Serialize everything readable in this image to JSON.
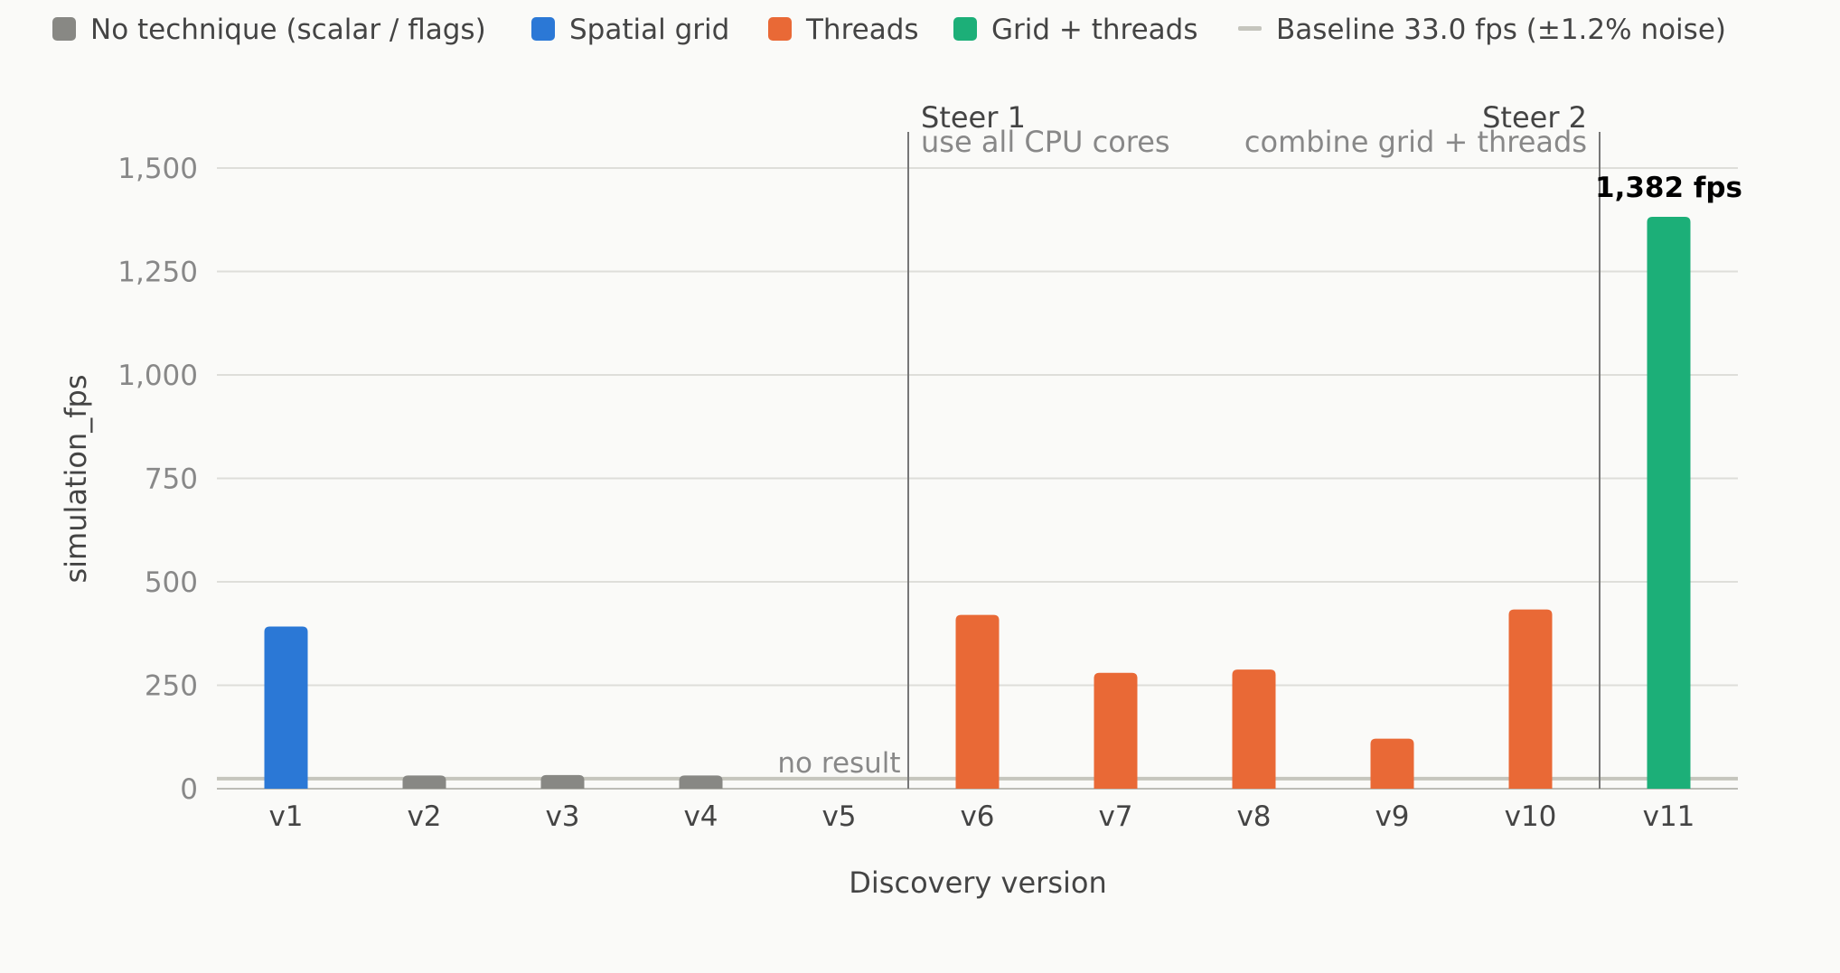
{
  "chart_data": {
    "type": "bar",
    "xlabel": "Discovery version",
    "ylabel": "simulation_fps",
    "ylim": [
      0,
      1580
    ],
    "yticks": [
      0,
      250,
      500,
      750,
      1000,
      1250,
      1500
    ],
    "ytick_labels": [
      "0",
      "250",
      "500",
      "750",
      "1,000",
      "1,250",
      "1,500"
    ],
    "categories": [
      "v1",
      "v2",
      "v3",
      "v4",
      "v5",
      "v6",
      "v7",
      "v8",
      "v9",
      "v10",
      "v11"
    ],
    "values": [
      392,
      32,
      33,
      32,
      null,
      420,
      280,
      288,
      121,
      433,
      1382
    ],
    "groups": [
      "grid",
      "none",
      "none",
      "none",
      "none",
      "threads",
      "threads",
      "threads",
      "threads",
      "threads",
      "grid_threads"
    ],
    "legend": [
      {
        "key": "none",
        "label": "No technique (scalar / flags)",
        "color": "#888884",
        "marker": "square"
      },
      {
        "key": "grid",
        "label": "Spatial grid",
        "color": "#2b78d6",
        "marker": "square"
      },
      {
        "key": "threads",
        "label": "Threads",
        "color": "#e96936",
        "marker": "square"
      },
      {
        "key": "grid_threads",
        "label": "Grid + threads",
        "color": "#1caf78",
        "marker": "square"
      },
      {
        "key": "baseline",
        "label": "Baseline 33.0 fps (±1.2% noise)",
        "color": "#c5c5bd",
        "marker": "line"
      }
    ],
    "legend_position": "top",
    "baseline": {
      "value": 33.0
    },
    "annotations": {
      "no_result": {
        "category": "v5",
        "text": "no result"
      },
      "peak_label": {
        "category": "v11",
        "text": "1,382 fps"
      }
    },
    "steers": [
      {
        "after": "v5",
        "title": "Steer 1",
        "subtitle": "use all CPU cores",
        "align": "left"
      },
      {
        "after": "v10",
        "title": "Steer 2",
        "subtitle": "combine grid + threads",
        "align": "right"
      }
    ],
    "grid": true
  }
}
